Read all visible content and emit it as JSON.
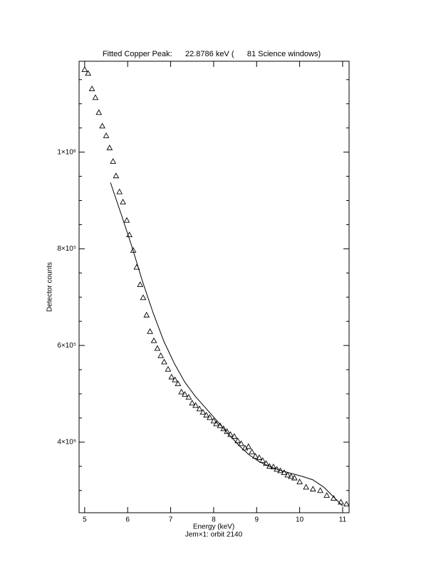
{
  "chart_data": {
    "type": "scatter-fit",
    "title": "Fitted Copper Peak:      22.8786 keV (      81 Science windows)",
    "xlabel": "Energy (keV)",
    "ylabel": "Detector counts",
    "subtitle": "Jem×1: orbit 2140",
    "xlim": [
      4.87,
      11.15
    ],
    "ylim": [
      254000,
      1188000
    ],
    "xticks": [
      5,
      6,
      7,
      8,
      9,
      10,
      11
    ],
    "yticks": [
      {
        "value": 400000,
        "label": "4×10⁵"
      },
      {
        "value": 600000,
        "label": "6×10⁵"
      },
      {
        "value": 800000,
        "label": "8×10⁵"
      },
      {
        "value": 1000000,
        "label": "1×10⁶"
      }
    ],
    "yminorticks": [
      300000,
      350000,
      450000,
      500000,
      550000,
      650000,
      700000,
      750000,
      850000,
      900000,
      950000,
      1050000,
      1100000,
      1150000
    ],
    "color": "#000000",
    "series": [
      {
        "marker": "triangle",
        "x": [
          5.0,
          5.08,
          5.17,
          5.25,
          5.33,
          5.41,
          5.5,
          5.58,
          5.66,
          5.73,
          5.81,
          5.89,
          5.98,
          6.04,
          6.13,
          6.21,
          6.29,
          6.36,
          6.44,
          6.52,
          6.61,
          6.69,
          6.77,
          6.85,
          6.94,
          7.02,
          7.1,
          7.17,
          7.25,
          7.33,
          7.42,
          7.5,
          7.58,
          7.67,
          7.75,
          7.83,
          7.91,
          8.0,
          8.06,
          8.15,
          8.23,
          8.31,
          8.39,
          8.48,
          8.56,
          8.64,
          8.73,
          8.81,
          8.89,
          8.97,
          9.06,
          9.14,
          9.22,
          9.3,
          9.39,
          9.47,
          9.55,
          9.64,
          9.72,
          9.8,
          9.88,
          10.0,
          10.15,
          10.31,
          10.48,
          10.63,
          10.79,
          10.96,
          11.09
        ],
        "values": [
          1171000,
          1163000,
          1131000,
          1113000,
          1082000,
          1054000,
          1034000,
          1009000,
          981000,
          951000,
          918000,
          897000,
          859000,
          829000,
          797000,
          762000,
          726000,
          699000,
          663000,
          629000,
          610000,
          594000,
          579000,
          566000,
          551000,
          535000,
          529000,
          521000,
          504000,
          499000,
          493000,
          481000,
          476000,
          469000,
          462000,
          456000,
          451000,
          444000,
          438000,
          434000,
          428000,
          422000,
          416000,
          412000,
          403000,
          397000,
          388000,
          391000,
          380000,
          371000,
          368000,
          362000,
          356000,
          350000,
          349000,
          344000,
          341000,
          337000,
          332000,
          329000,
          326000,
          318000,
          307000,
          303000,
          300000,
          290000,
          284000,
          276000,
          272000
        ]
      },
      {
        "marker": "line",
        "x": [
          5.6,
          5.84,
          6.09,
          6.34,
          6.59,
          6.84,
          7.09,
          7.33,
          7.58,
          7.83,
          8.08,
          8.33,
          8.58,
          8.82,
          9.07,
          9.32,
          9.57,
          9.82,
          10.07,
          10.31,
          10.56,
          10.81,
          11.0
        ],
        "values": [
          937000,
          874000,
          807000,
          734000,
          668000,
          609000,
          562000,
          524000,
          494000,
          469000,
          444000,
          418000,
          394000,
          374000,
          359000,
          349000,
          341000,
          335000,
          329000,
          322000,
          307000,
          285000,
          268000
        ]
      }
    ]
  }
}
